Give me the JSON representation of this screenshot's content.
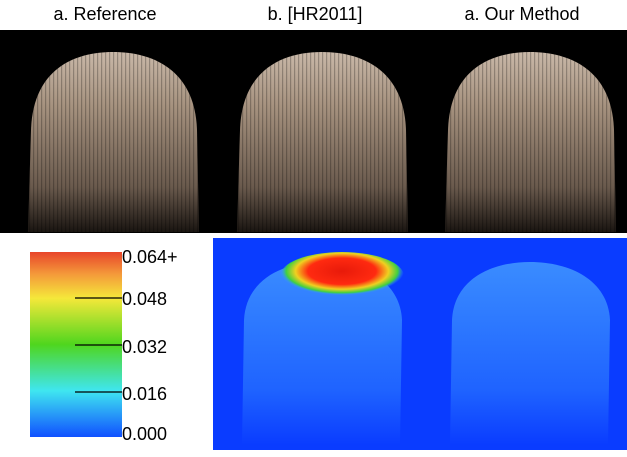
{
  "titles": [
    "a. Reference",
    "b. [HR2011]",
    "a. Our Method"
  ],
  "colorbar": {
    "labels": [
      "0.064+",
      "0.048",
      "0.032",
      "0.016",
      "0.000"
    ]
  }
}
